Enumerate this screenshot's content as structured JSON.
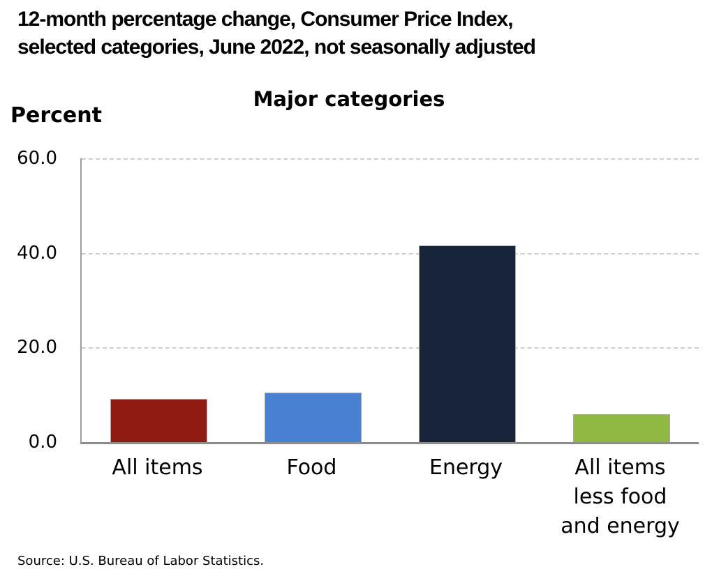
{
  "header": {
    "line1": "12-month percentage change, Consumer Price Index,",
    "line2": "selected categories, June 2022, not seasonally adjusted"
  },
  "axis": {
    "ylabel": "Percent"
  },
  "source": "Source: U.S. Bureau of Labor Statistics.",
  "chart_data": {
    "type": "bar",
    "title": "Major categories",
    "header": "12-month percentage change, Consumer Price Index, selected categories, June 2022, not seasonally adjusted",
    "ylabel": "Percent",
    "categories": [
      "All items",
      "Food",
      "Energy",
      "All items\nless food\nand energy"
    ],
    "category_names": [
      "all-items",
      "food",
      "energy",
      "all-items-less-food-and-energy"
    ],
    "values": [
      9.1,
      10.4,
      41.6,
      5.9
    ],
    "bar_colors": [
      "#8e1c12",
      "#4a80d1",
      "#18243a",
      "#8fb942"
    ],
    "ylim": [
      0,
      60
    ],
    "yticks": [
      0.0,
      20.0,
      40.0,
      60.0
    ],
    "ytick_labels": [
      "0.0",
      "20.0",
      "40.0",
      "60.0"
    ],
    "grid": "horizontal-dashed",
    "legend": "none",
    "source": "Source: U.S. Bureau of Labor Statistics."
  }
}
